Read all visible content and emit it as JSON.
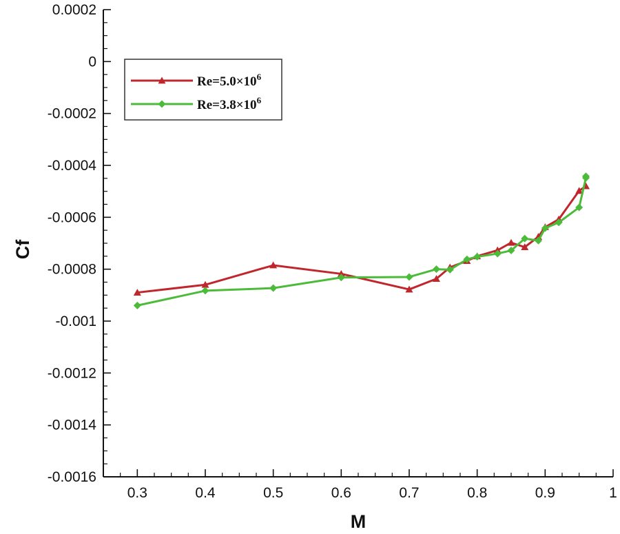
{
  "chart_data": {
    "type": "line",
    "xlabel": "M",
    "ylabel": "Cf",
    "xlim": [
      0.25,
      1.0
    ],
    "ylim": [
      -0.0016,
      0.0002
    ],
    "x_ticks": [
      0.3,
      0.4,
      0.5,
      0.6,
      0.7,
      0.8,
      0.9,
      1
    ],
    "x_tick_labels": [
      "0.3",
      "0.4",
      "0.5",
      "0.6",
      "0.7",
      "0.8",
      "0.9",
      "1"
    ],
    "y_ticks": [
      0.0002,
      0,
      -0.0002,
      -0.0004,
      -0.0006,
      -0.0008,
      -0.001,
      -0.0012,
      -0.0014,
      -0.0016
    ],
    "y_tick_labels": [
      "0.0002",
      "0",
      "-0.0002",
      "-0.0004",
      "-0.0006",
      "-0.0008",
      "-0.001",
      "-0.0012",
      "-0.0014",
      "-0.0016"
    ],
    "grid": false,
    "legend_position": "top-left",
    "series": [
      {
        "name": "Re=5.0×10⁶",
        "legend_base": "Re=5.0×10",
        "legend_exp": "6",
        "color": "#c0272d",
        "marker": "triangle",
        "x": [
          0.3,
          0.4,
          0.5,
          0.6,
          0.7,
          0.74,
          0.76,
          0.785,
          0.8,
          0.83,
          0.85,
          0.87,
          0.89,
          0.9,
          0.92,
          0.95,
          0.96
        ],
        "y": [
          -0.00089,
          -0.00086,
          -0.000785,
          -0.000818,
          -0.000878,
          -0.000837,
          -0.000793,
          -0.000768,
          -0.00075,
          -0.000727,
          -0.000698,
          -0.000715,
          -0.000675,
          -0.000638,
          -0.000608,
          -0.000498,
          -0.00048
        ]
      },
      {
        "name": "Re=3.8×10⁶",
        "legend_base": "Re=3.8×10",
        "legend_exp": "6",
        "color": "#4cbb3a",
        "marker": "diamond",
        "x": [
          0.3,
          0.4,
          0.5,
          0.6,
          0.7,
          0.74,
          0.76,
          0.785,
          0.8,
          0.83,
          0.85,
          0.87,
          0.89,
          0.9,
          0.92,
          0.95,
          0.96,
          0.96
        ],
        "y": [
          -0.00094,
          -0.000883,
          -0.000873,
          -0.000832,
          -0.00083,
          -0.0008,
          -0.000802,
          -0.000762,
          -0.000752,
          -0.00074,
          -0.000728,
          -0.000682,
          -0.00069,
          -0.000642,
          -0.00062,
          -0.000562,
          -0.000448,
          -0.000442
        ]
      }
    ]
  }
}
